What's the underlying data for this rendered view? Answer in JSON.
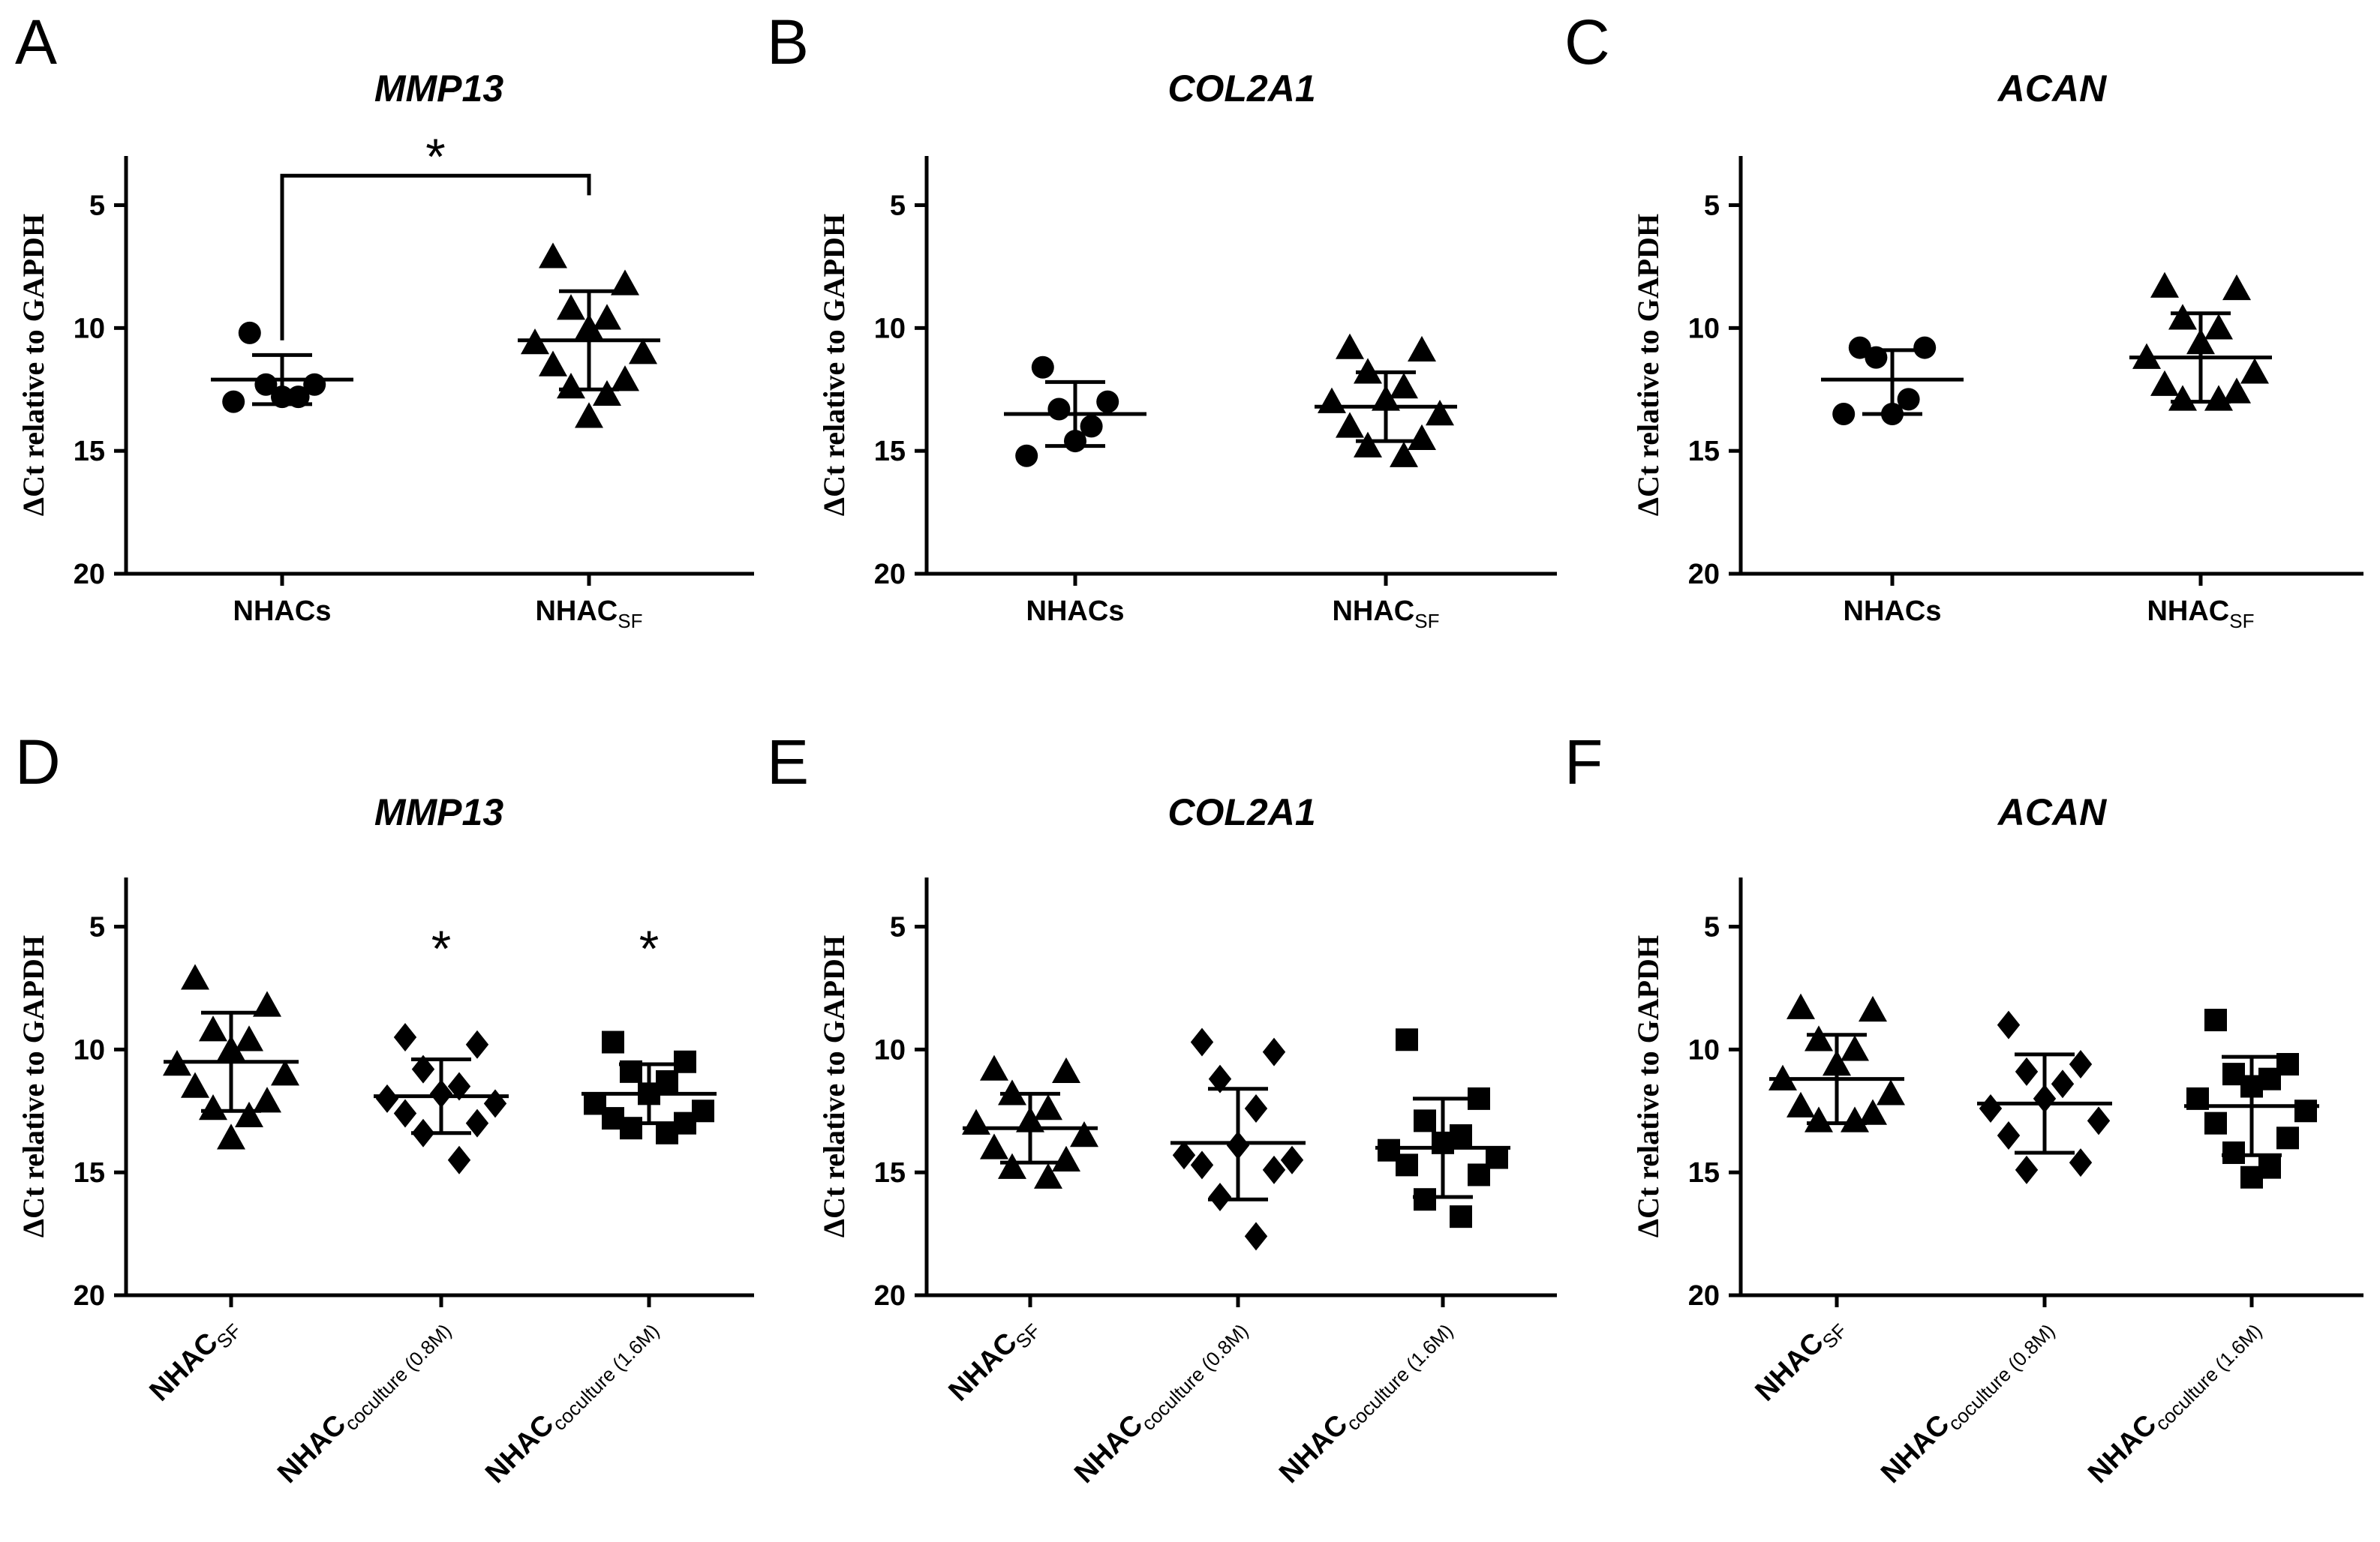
{
  "figure": {
    "ylabel": "ΔCt relative to GAPDH",
    "yticks": [
      "5",
      "10",
      "15",
      "20"
    ]
  },
  "chart_data": [
    {
      "panel": "A",
      "title": "MMP13",
      "type": "scatter",
      "ylim": [
        3,
        20
      ],
      "y_inverted": true,
      "yticks": [
        5,
        10,
        15,
        20
      ],
      "categories": [
        {
          "main": "NHACs",
          "sub": ""
        },
        {
          "main": "NHAC",
          "sub": "SF"
        }
      ],
      "series": [
        {
          "marker": "circle",
          "mean": 12.1,
          "sd": [
            11.1,
            13.1
          ],
          "points": [
            10.2,
            12.3,
            12.3,
            12.8,
            12.8,
            13.0
          ]
        },
        {
          "marker": "triangle",
          "mean": 10.5,
          "sd": [
            8.5,
            12.5
          ],
          "points": [
            7.1,
            8.2,
            9.2,
            9.6,
            10.0,
            10.6,
            11.0,
            11.5,
            12.1,
            12.4,
            12.7,
            13.6
          ]
        }
      ],
      "significance": {
        "type": "bracket",
        "label": "*",
        "between": [
          0,
          1
        ]
      }
    },
    {
      "panel": "B",
      "title": "COL2A1",
      "type": "scatter",
      "ylim": [
        3,
        20
      ],
      "y_inverted": true,
      "yticks": [
        5,
        10,
        15,
        20
      ],
      "categories": [
        {
          "main": "NHACs",
          "sub": ""
        },
        {
          "main": "NHAC",
          "sub": "SF"
        }
      ],
      "series": [
        {
          "marker": "circle",
          "mean": 13.5,
          "sd": [
            12.2,
            14.8
          ],
          "points": [
            11.6,
            13.0,
            13.3,
            14.0,
            14.6,
            15.2
          ]
        },
        {
          "marker": "triangle",
          "mean": 13.2,
          "sd": [
            11.8,
            14.6
          ],
          "points": [
            10.8,
            10.9,
            11.8,
            12.4,
            12.9,
            13.0,
            13.5,
            14.0,
            14.5,
            14.8,
            15.2
          ]
        }
      ],
      "significance": null
    },
    {
      "panel": "C",
      "title": "ACAN",
      "type": "scatter",
      "ylim": [
        3,
        20
      ],
      "y_inverted": true,
      "yticks": [
        5,
        10,
        15,
        20
      ],
      "categories": [
        {
          "main": "NHACs",
          "sub": ""
        },
        {
          "main": "NHAC",
          "sub": "SF"
        }
      ],
      "series": [
        {
          "marker": "circle",
          "mean": 12.1,
          "sd": [
            10.9,
            13.5
          ],
          "points": [
            10.8,
            10.8,
            11.2,
            12.9,
            13.5,
            13.5
          ]
        },
        {
          "marker": "triangle",
          "mean": 11.2,
          "sd": [
            9.4,
            13.0
          ],
          "points": [
            8.3,
            8.4,
            9.6,
            10.0,
            10.6,
            11.2,
            11.8,
            12.3,
            12.6,
            12.9,
            12.9
          ]
        }
      ],
      "significance": null
    },
    {
      "panel": "D",
      "title": "MMP13",
      "type": "scatter",
      "ylim": [
        3,
        20
      ],
      "y_inverted": true,
      "yticks": [
        5,
        10,
        15,
        20
      ],
      "categories": [
        {
          "main": "NHAC",
          "sub": "SF"
        },
        {
          "main": "NHAC",
          "sub": "coculture (0.8M)"
        },
        {
          "main": "NHAC",
          "sub": "coculture (1.6M)"
        }
      ],
      "series": [
        {
          "marker": "triangle",
          "mean": 10.5,
          "sd": [
            8.5,
            12.5
          ],
          "points": [
            7.1,
            8.2,
            9.2,
            9.6,
            10.0,
            10.6,
            11.0,
            11.5,
            12.1,
            12.4,
            12.7,
            13.6
          ]
        },
        {
          "marker": "diamond",
          "mean": 11.9,
          "sd": [
            10.4,
            13.4
          ],
          "points": [
            9.5,
            9.8,
            10.8,
            11.5,
            11.8,
            12.0,
            12.2,
            12.6,
            13.0,
            13.4,
            14.5
          ]
        },
        {
          "marker": "square",
          "mean": 11.8,
          "sd": [
            10.6,
            13.0
          ],
          "points": [
            9.7,
            10.5,
            10.9,
            11.3,
            11.8,
            12.2,
            12.5,
            12.8,
            13.0,
            13.2,
            13.4
          ]
        }
      ],
      "significance": {
        "type": "stars",
        "label": "*",
        "categories": [
          1,
          2
        ]
      }
    },
    {
      "panel": "E",
      "title": "COL2A1",
      "type": "scatter",
      "ylim": [
        3,
        20
      ],
      "y_inverted": true,
      "yticks": [
        5,
        10,
        15,
        20
      ],
      "categories": [
        {
          "main": "NHAC",
          "sub": "SF"
        },
        {
          "main": "NHAC",
          "sub": "coculture (0.8M)"
        },
        {
          "main": "NHAC",
          "sub": "coculture (1.6M)"
        }
      ],
      "series": [
        {
          "marker": "triangle",
          "mean": 13.2,
          "sd": [
            11.8,
            14.6
          ],
          "points": [
            10.8,
            10.9,
            11.8,
            12.4,
            12.9,
            13.0,
            13.5,
            14.0,
            14.5,
            14.8,
            15.2
          ]
        },
        {
          "marker": "diamond",
          "mean": 13.8,
          "sd": [
            11.6,
            16.1
          ],
          "points": [
            9.7,
            10.1,
            11.2,
            12.4,
            13.9,
            14.3,
            14.5,
            14.7,
            14.9,
            16.0,
            17.6
          ]
        },
        {
          "marker": "square",
          "mean": 14.0,
          "sd": [
            12.0,
            16.0
          ],
          "points": [
            9.6,
            12.0,
            12.9,
            13.5,
            13.8,
            14.1,
            14.4,
            14.7,
            15.1,
            16.1,
            16.8
          ]
        }
      ],
      "significance": null
    },
    {
      "panel": "F",
      "title": "ACAN",
      "type": "scatter",
      "ylim": [
        3,
        20
      ],
      "y_inverted": true,
      "yticks": [
        5,
        10,
        15,
        20
      ],
      "categories": [
        {
          "main": "NHAC",
          "sub": "SF"
        },
        {
          "main": "NHAC",
          "sub": "coculture (0.8M)"
        },
        {
          "main": "NHAC",
          "sub": "coculture (1.6M)"
        }
      ],
      "series": [
        {
          "marker": "triangle",
          "mean": 11.2,
          "sd": [
            9.4,
            13.0
          ],
          "points": [
            8.3,
            8.4,
            9.6,
            10.0,
            10.6,
            11.2,
            11.8,
            12.3,
            12.6,
            12.9,
            12.9
          ]
        },
        {
          "marker": "diamond",
          "mean": 12.2,
          "sd": [
            10.2,
            14.2
          ],
          "points": [
            9.0,
            10.6,
            10.9,
            11.4,
            12.0,
            12.4,
            12.9,
            13.5,
            14.6,
            14.9
          ]
        },
        {
          "marker": "square",
          "mean": 12.3,
          "sd": [
            10.3,
            14.3
          ],
          "points": [
            8.8,
            10.6,
            11.0,
            11.2,
            11.5,
            12.0,
            12.5,
            13.0,
            13.6,
            14.2,
            14.8,
            15.2
          ]
        }
      ],
      "significance": null
    }
  ]
}
